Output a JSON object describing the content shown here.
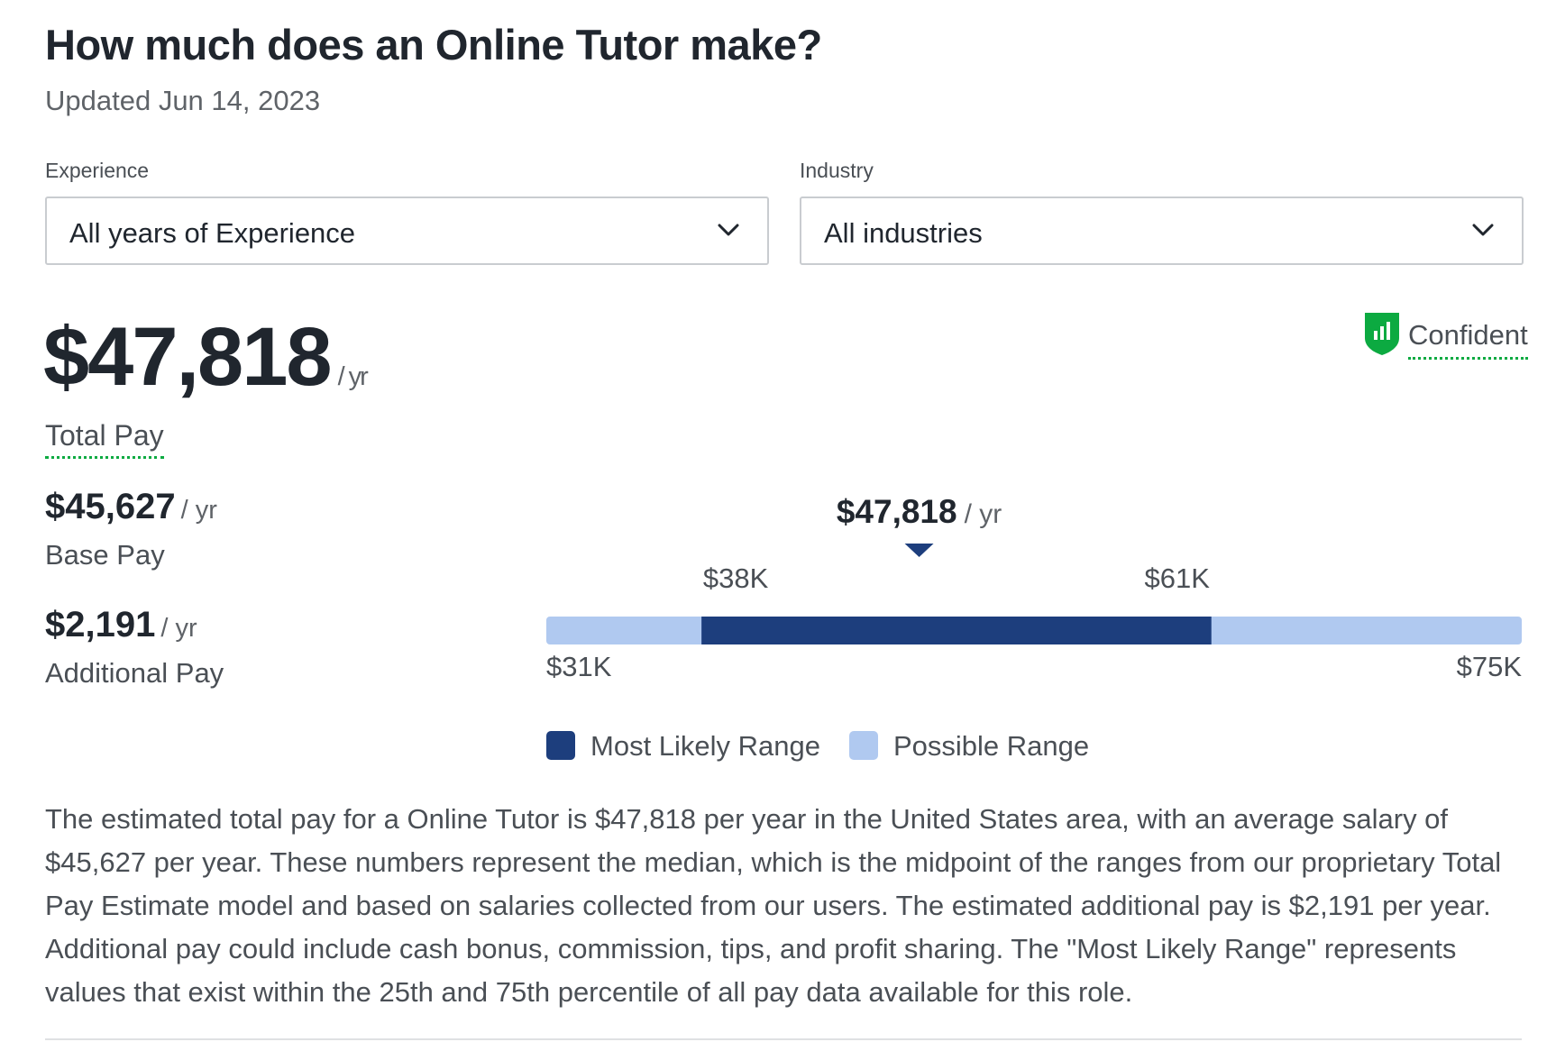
{
  "page": {
    "title": "How much does an Online Tutor make?",
    "updated": "Updated Jun 14, 2023"
  },
  "filters": {
    "experience": {
      "label": "Experience",
      "value": "All years of Experience"
    },
    "industry": {
      "label": "Industry",
      "value": "All industries"
    }
  },
  "pay": {
    "total_amount": "$47,818",
    "per_year": "/ yr",
    "total_label": "Total Pay",
    "confidence_label": "Confident",
    "base_amount": "$45,627",
    "base_label": "Base Pay",
    "additional_amount": "$2,191",
    "additional_label": "Additional Pay"
  },
  "chart_data": {
    "type": "range-bar",
    "min": 31000,
    "max": 75000,
    "likely_low": 38000,
    "likely_high": 61000,
    "median": 47818,
    "median_label": "$47,818",
    "median_unit": "/ yr",
    "min_label": "$31K",
    "max_label": "$75K",
    "likely_low_label": "$38K",
    "likely_high_label": "$61K",
    "colors": {
      "likely": "#1d3e7d",
      "possible": "#b0c9f0"
    }
  },
  "legend": {
    "likely": "Most Likely Range",
    "possible": "Possible Range"
  },
  "description": "The estimated total pay for a Online Tutor is $47,818 per year in the United States area, with an average salary of $45,627 per year. These numbers represent the median, which is the midpoint of the ranges from our proprietary Total Pay Estimate model and based on salaries collected from our users. The estimated additional pay is $2,191 per year. Additional pay could include cash bonus, commission, tips, and profit sharing. The \"Most Likely Range\" represents values that exist within the 25th and 75th percentile of all pay data available for this role.",
  "icons": {
    "confidence": "shield-bar-chart-icon",
    "dropdown": "chevron-down-icon"
  }
}
